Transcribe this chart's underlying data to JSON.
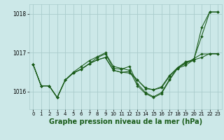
{
  "bg_color": "#cce8e8",
  "grid_color": "#aacccc",
  "line_color": "#1a5c1a",
  "marker_color": "#1a5c1a",
  "xlabel": "Graphe pression niveau de la mer (hPa)",
  "xlabel_fontsize": 7,
  "ytick_labels": [
    "1016",
    "1017",
    "1018"
  ],
  "yticks": [
    1016,
    1017,
    1018
  ],
  "xticks": [
    0,
    1,
    2,
    3,
    4,
    5,
    6,
    7,
    8,
    9,
    10,
    11,
    12,
    13,
    14,
    15,
    16,
    17,
    18,
    19,
    20,
    21,
    22,
    23
  ],
  "xlim": [
    -0.5,
    23.5
  ],
  "ylim": [
    1015.55,
    1018.25
  ],
  "series": [
    [
      1016.7,
      1016.15,
      1016.15,
      1015.85,
      1016.3,
      1016.5,
      1016.65,
      1016.8,
      1016.9,
      1017.0,
      1016.65,
      1016.6,
      1016.55,
      1016.15,
      1015.95,
      1015.85,
      1015.95,
      1016.3,
      1016.6,
      1016.75,
      1016.8,
      1017.65,
      1018.05,
      1018.05
    ],
    [
      1016.7,
      1016.15,
      1016.15,
      1015.85,
      1016.3,
      1016.48,
      1016.58,
      1016.72,
      1016.82,
      1016.88,
      1016.55,
      1016.5,
      1016.48,
      1016.3,
      1016.1,
      1016.05,
      1016.1,
      1016.4,
      1016.6,
      1016.68,
      1016.82,
      1016.88,
      1016.98,
      1016.98
    ],
    [
      1016.7,
      1016.15,
      1016.15,
      1015.85,
      1016.3,
      1016.48,
      1016.58,
      1016.72,
      1016.88,
      1016.97,
      1016.6,
      1016.58,
      1016.65,
      1016.2,
      1015.98,
      1015.87,
      1015.98,
      1016.32,
      1016.62,
      1016.77,
      1016.82,
      1017.43,
      1018.05,
      1018.05
    ],
    [
      1016.7,
      1016.15,
      1016.15,
      1015.85,
      1016.3,
      1016.48,
      1016.58,
      1016.72,
      1016.82,
      1016.88,
      1016.55,
      1016.5,
      1016.52,
      1016.3,
      1016.08,
      1016.05,
      1016.13,
      1016.42,
      1016.62,
      1016.72,
      1016.85,
      1016.97,
      1016.97,
      1016.97
    ]
  ]
}
